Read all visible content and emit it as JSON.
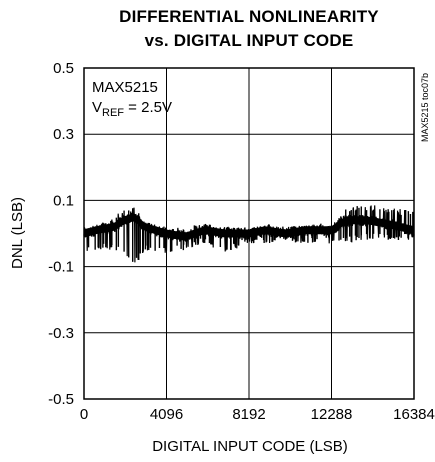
{
  "title_line1": "DIFFERENTIAL NONLINEARITY",
  "title_line2": "vs. DIGITAL INPUT CODE",
  "chart_data": {
    "type": "line",
    "title": "DIFFERENTIAL NONLINEARITY vs. DIGITAL INPUT CODE",
    "xlabel": "DIGITAL INPUT CODE (LSB)",
    "ylabel": "DNL (LSB)",
    "xlim": [
      0,
      16384
    ],
    "ylim": [
      -0.5,
      0.5
    ],
    "x_ticks": [
      "0",
      "4096",
      "8192",
      "12288",
      "16384"
    ],
    "y_ticks": [
      "0.5",
      "0.3",
      "0.1",
      "-0.1",
      "-0.3",
      "-0.5"
    ],
    "grid": true,
    "annotation_device": "MAX5215",
    "annotation_vref_prefix": "V",
    "annotation_vref_sub": "REF",
    "annotation_vref_value": " = 2.5V",
    "figure_code": "MAX5215 toc07b",
    "series": [
      {
        "x": [
          0,
          600,
          1500,
          2000,
          2500,
          3000,
          4096,
          5000,
          6000,
          7000,
          8192,
          9000,
          10000,
          11000,
          12288,
          13000,
          14000,
          15000,
          16384
        ],
        "y": [
          0.0,
          0.01,
          0.02,
          0.04,
          0.05,
          0.02,
          0.0,
          -0.01,
          0.01,
          0.0,
          0.0,
          0.01,
          0.0,
          0.01,
          0.01,
          0.04,
          0.04,
          0.03,
          0.01
        ],
        "y_min": [
          -0.06,
          -0.05,
          -0.05,
          -0.06,
          -0.1,
          -0.05,
          -0.06,
          -0.05,
          -0.03,
          -0.06,
          -0.03,
          -0.03,
          -0.03,
          -0.03,
          -0.03,
          -0.03,
          -0.02,
          -0.02,
          -0.02
        ],
        "y_max": [
          0.02,
          0.02,
          0.06,
          0.07,
          0.08,
          0.03,
          0.02,
          0.02,
          0.03,
          0.02,
          0.02,
          0.03,
          0.02,
          0.03,
          0.03,
          0.08,
          0.09,
          0.08,
          0.07
        ]
      }
    ]
  }
}
